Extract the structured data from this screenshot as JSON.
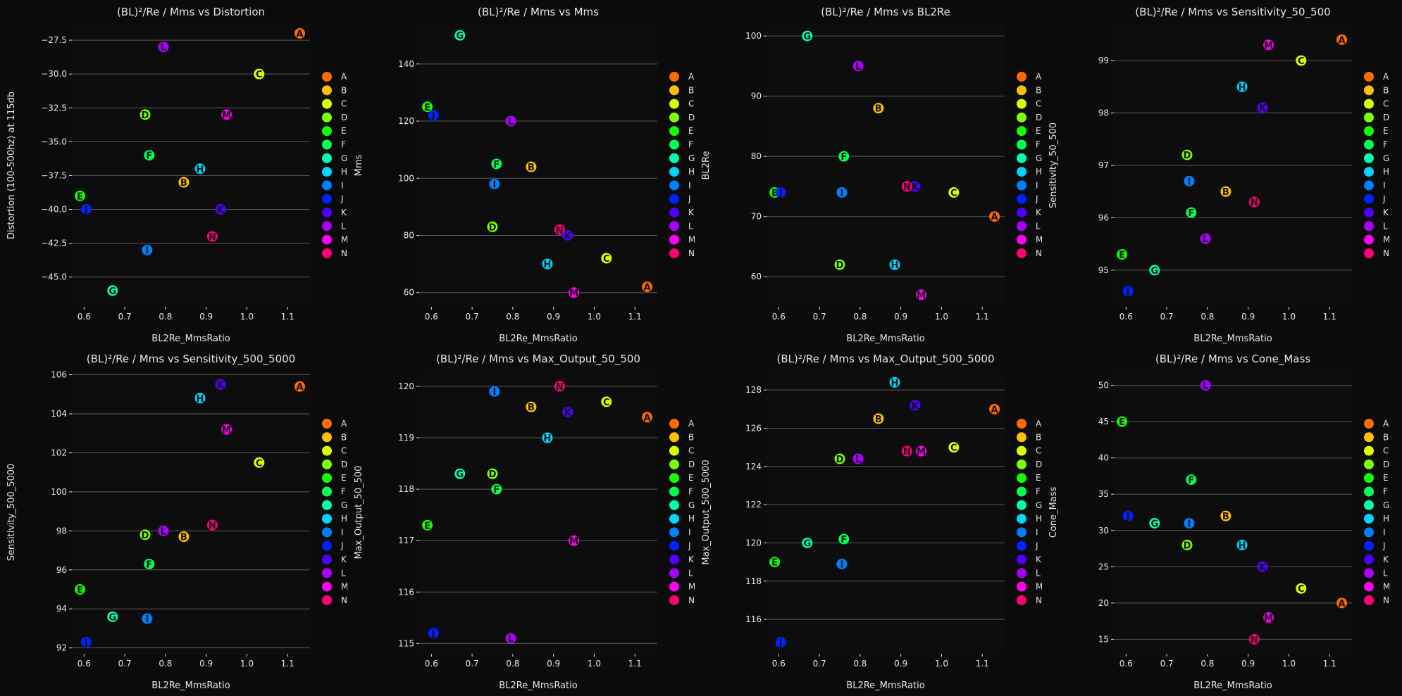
{
  "colors": {
    "A": "#ff6a00",
    "B": "#ffbf00",
    "C": "#d8ff00",
    "D": "#7cff00",
    "E": "#12ff00",
    "F": "#00ff55",
    "G": "#00ffae",
    "H": "#00d4ff",
    "I": "#0080ff",
    "J": "#0022ff",
    "K": "#4d00ff",
    "L": "#aa00ff",
    "M": "#ff00f2",
    "N": "#ff0077"
  },
  "legend": [
    "A",
    "B",
    "C",
    "D",
    "E",
    "F",
    "G",
    "H",
    "I",
    "J",
    "K",
    "L",
    "M",
    "N"
  ],
  "x": {
    "A": 1.13,
    "B": 0.845,
    "C": 1.03,
    "D": 0.75,
    "E": 0.59,
    "F": 0.76,
    "G": 0.67,
    "H": 0.885,
    "I": 0.755,
    "J": 0.605,
    "K": 0.935,
    "L": 0.795,
    "M": 0.95,
    "N": 0.915
  },
  "chart_data": [
    {
      "type": "scatter",
      "title": "(BL)²/Re / Mms vs Distortion",
      "xlabel": "BL2Re_MmsRatio",
      "ylabel": "Distortion (100-500hz) at 115db",
      "xlim": [
        0.57,
        1.155
      ],
      "ylim": [
        -47.2,
        -26.3
      ],
      "xticks": [
        0.6,
        0.7,
        0.8,
        0.9,
        1.0,
        1.1
      ],
      "xtick_labels": [
        "0.6",
        "0.7",
        "0.8",
        "0.9",
        "1.0",
        "1.1"
      ],
      "yticks": [
        -45,
        -42.5,
        -40,
        -37.5,
        -35,
        -32.5,
        -30,
        -27.5
      ],
      "ytick_labels": [
        "−45.0",
        "−42.5",
        "−40.0",
        "−37.5",
        "−35.0",
        "−32.5",
        "−30.0",
        "−27.5"
      ],
      "y": {
        "A": -27.0,
        "B": -38.0,
        "C": -30.0,
        "D": -33.0,
        "E": -39.0,
        "F": -36.0,
        "G": -46.0,
        "H": -37.0,
        "I": -43.0,
        "J": -40.0,
        "K": -40.0,
        "L": -28.0,
        "M": -33.0,
        "N": -42.0
      }
    },
    {
      "type": "scatter",
      "title": "(BL)²/Re / Mms vs Mms",
      "xlabel": "BL2Re_MmsRatio",
      "ylabel": "Mms",
      "xlim": [
        0.57,
        1.155
      ],
      "ylim": [
        55,
        154
      ],
      "xticks": [
        0.6,
        0.7,
        0.8,
        0.9,
        1.0,
        1.1
      ],
      "xtick_labels": [
        "0.6",
        "0.7",
        "0.8",
        "0.9",
        "1.0",
        "1.1"
      ],
      "yticks": [
        60,
        80,
        100,
        120,
        140
      ],
      "ytick_labels": [
        "60",
        "80",
        "100",
        "120",
        "140"
      ],
      "y": {
        "A": 62,
        "B": 104,
        "C": 72,
        "D": 83,
        "E": 125,
        "F": 105,
        "G": 150,
        "H": 70,
        "I": 98,
        "J": 122,
        "K": 80,
        "L": 120,
        "M": 60,
        "N": 82
      }
    },
    {
      "type": "scatter",
      "title": "(BL)²/Re / Mms vs BL2Re",
      "xlabel": "BL2Re_MmsRatio",
      "ylabel": "BL2Re",
      "xlim": [
        0.57,
        1.155
      ],
      "ylim": [
        55,
        102
      ],
      "xticks": [
        0.6,
        0.7,
        0.8,
        0.9,
        1.0,
        1.1
      ],
      "xtick_labels": [
        "0.6",
        "0.7",
        "0.8",
        "0.9",
        "1.0",
        "1.1"
      ],
      "yticks": [
        60,
        70,
        80,
        90,
        100
      ],
      "ytick_labels": [
        "60",
        "70",
        "80",
        "90",
        "100"
      ],
      "y": {
        "A": 70,
        "B": 88,
        "C": 74,
        "D": 62,
        "E": 74,
        "F": 80,
        "G": 100,
        "H": 62,
        "I": 74,
        "J": 74,
        "K": 75,
        "L": 95,
        "M": 57,
        "N": 75
      }
    },
    {
      "type": "scatter",
      "title": "(BL)²/Re / Mms vs Sensitivity_50_500",
      "xlabel": "BL2Re_MmsRatio",
      "ylabel": "Sensitivity_50_500",
      "xlim": [
        0.57,
        1.155
      ],
      "ylim": [
        94.3,
        99.7
      ],
      "xticks": [
        0.6,
        0.7,
        0.8,
        0.9,
        1.0,
        1.1
      ],
      "xtick_labels": [
        "0.6",
        "0.7",
        "0.8",
        "0.9",
        "1.0",
        "1.1"
      ],
      "yticks": [
        95,
        96,
        97,
        98,
        99
      ],
      "ytick_labels": [
        "95",
        "96",
        "97",
        "98",
        "99"
      ],
      "y": {
        "A": 99.4,
        "B": 96.5,
        "C": 99.0,
        "D": 97.2,
        "E": 95.3,
        "F": 96.1,
        "G": 95.0,
        "H": 98.5,
        "I": 96.7,
        "J": 94.6,
        "K": 98.1,
        "L": 95.6,
        "M": 99.3,
        "N": 96.3
      }
    },
    {
      "type": "scatter",
      "title": "(BL)²/Re / Mms vs Sensitivity_500_5000",
      "xlabel": "BL2Re_MmsRatio",
      "ylabel": "Sensitivity_500_5000",
      "xlim": [
        0.57,
        1.155
      ],
      "ylim": [
        91.7,
        106.2
      ],
      "xticks": [
        0.6,
        0.7,
        0.8,
        0.9,
        1.0,
        1.1
      ],
      "xtick_labels": [
        "0.6",
        "0.7",
        "0.8",
        "0.9",
        "1.0",
        "1.1"
      ],
      "yticks": [
        92,
        94,
        96,
        98,
        100,
        102,
        104,
        106
      ],
      "ytick_labels": [
        "92",
        "94",
        "96",
        "98",
        "100",
        "102",
        "104",
        "106"
      ],
      "y": {
        "A": 105.4,
        "B": 97.7,
        "C": 101.5,
        "D": 97.8,
        "E": 95.0,
        "F": 96.3,
        "G": 93.6,
        "H": 104.8,
        "I": 93.5,
        "J": 92.3,
        "K": 105.5,
        "L": 98.0,
        "M": 103.2,
        "N": 98.3
      }
    },
    {
      "type": "scatter",
      "title": "(BL)²/Re / Mms vs Max_Output_50_500",
      "xlabel": "BL2Re_MmsRatio",
      "ylabel": "Max_Output_50_500",
      "xlim": [
        0.57,
        1.155
      ],
      "ylim": [
        114.8,
        120.3
      ],
      "xticks": [
        0.6,
        0.7,
        0.8,
        0.9,
        1.0,
        1.1
      ],
      "xtick_labels": [
        "0.6",
        "0.7",
        "0.8",
        "0.9",
        "1.0",
        "1.1"
      ],
      "yticks": [
        115,
        116,
        117,
        118,
        119,
        120
      ],
      "ytick_labels": [
        "115",
        "116",
        "117",
        "118",
        "119",
        "120"
      ],
      "y": {
        "A": 119.4,
        "B": 119.6,
        "C": 119.7,
        "D": 118.3,
        "E": 117.3,
        "F": 118.0,
        "G": 118.3,
        "H": 119.0,
        "I": 119.9,
        "J": 115.2,
        "K": 119.5,
        "L": 115.1,
        "M": 117.0,
        "N": 120.0
      }
    },
    {
      "type": "scatter",
      "title": "(BL)²/Re / Mms vs Max_Output_500_5000",
      "xlabel": "BL2Re_MmsRatio",
      "ylabel": "Max_Output_500_5000",
      "xlim": [
        0.57,
        1.155
      ],
      "ylim": [
        114.2,
        129.0
      ],
      "xticks": [
        0.6,
        0.7,
        0.8,
        0.9,
        1.0,
        1.1
      ],
      "xtick_labels": [
        "0.6",
        "0.7",
        "0.8",
        "0.9",
        "1.0",
        "1.1"
      ],
      "yticks": [
        116,
        118,
        120,
        122,
        124,
        126,
        128
      ],
      "ytick_labels": [
        "116",
        "118",
        "120",
        "122",
        "124",
        "126",
        "128"
      ],
      "y": {
        "A": 127.0,
        "B": 126.5,
        "C": 125.0,
        "D": 124.4,
        "E": 119.0,
        "F": 120.2,
        "G": 120.0,
        "H": 128.4,
        "I": 118.9,
        "J": 114.8,
        "K": 127.2,
        "L": 124.4,
        "M": 124.8,
        "N": 124.8
      }
    },
    {
      "type": "scatter",
      "title": "(BL)²/Re / Mms vs Cone_Mass",
      "xlabel": "BL2Re_MmsRatio",
      "ylabel": "Cone_Mass",
      "xlim": [
        0.57,
        1.155
      ],
      "ylim": [
        13,
        52
      ],
      "xticks": [
        0.6,
        0.7,
        0.8,
        0.9,
        1.0,
        1.1
      ],
      "xtick_labels": [
        "0.6",
        "0.7",
        "0.8",
        "0.9",
        "1.0",
        "1.1"
      ],
      "yticks": [
        15,
        20,
        25,
        30,
        35,
        40,
        45,
        50
      ],
      "ytick_labels": [
        "15",
        "20",
        "25",
        "30",
        "35",
        "40",
        "45",
        "50"
      ],
      "y": {
        "A": 20,
        "B": 32,
        "C": 22,
        "D": 28,
        "E": 45,
        "F": 37,
        "G": 31,
        "H": 28,
        "I": 31,
        "J": 32,
        "K": 25,
        "L": 50,
        "M": 18,
        "N": 15
      }
    }
  ]
}
